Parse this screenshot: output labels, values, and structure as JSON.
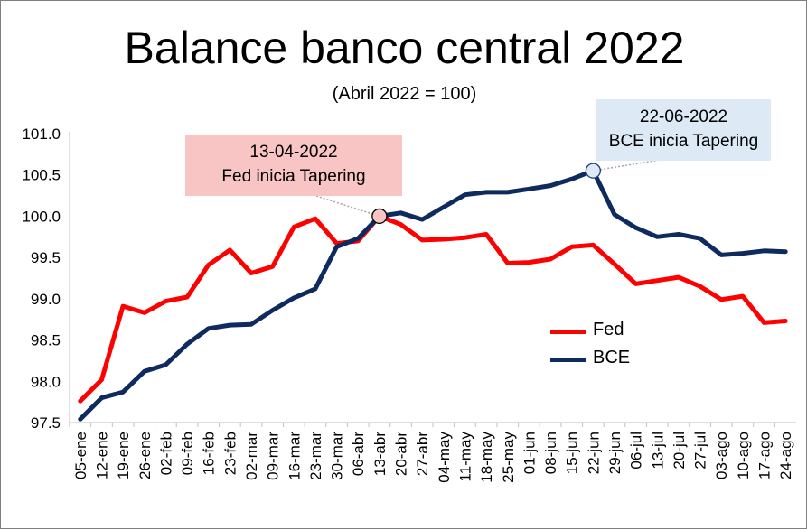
{
  "chart_data": {
    "type": "line",
    "title": "Balance banco central 2022",
    "subtitle": "(Abril 2022 = 100)",
    "x": [
      "05-ene",
      "12-ene",
      "19-ene",
      "26-ene",
      "02-feb",
      "09-feb",
      "16-feb",
      "23-feb",
      "02-mar",
      "09-mar",
      "16-mar",
      "23-mar",
      "30-mar",
      "06-abr",
      "13-abr",
      "20-abr",
      "27-abr",
      "04-may",
      "11-may",
      "18-may",
      "25-may",
      "01-jun",
      "08-jun",
      "15-jun",
      "22-jun",
      "29-jun",
      "06-jul",
      "13-jul",
      "20-jul",
      "27-jul",
      "03-ago",
      "10-ago",
      "17-ago",
      "24-ago"
    ],
    "yticks": [
      "97.5",
      "98.0",
      "98.5",
      "99.0",
      "99.5",
      "100.0",
      "100.5",
      "101.0"
    ],
    "ylim": [
      97.5,
      101.0
    ],
    "grid": false,
    "legend_position": "bottom-right",
    "series": [
      {
        "name": "Fed",
        "color": "#ff0000",
        "values": [
          97.76,
          98.02,
          98.91,
          98.83,
          98.97,
          99.02,
          99.41,
          99.59,
          99.31,
          99.39,
          99.87,
          99.97,
          99.67,
          99.7,
          100.0,
          99.9,
          99.71,
          99.72,
          99.74,
          99.78,
          99.43,
          99.44,
          99.48,
          99.63,
          99.65,
          99.42,
          99.18,
          99.22,
          99.26,
          99.15,
          98.99,
          99.03,
          98.71,
          98.73
        ]
      },
      {
        "name": "BCE",
        "color": "#0e2a5e",
        "values": [
          97.54,
          97.8,
          97.87,
          98.12,
          98.2,
          98.45,
          98.64,
          98.68,
          98.69,
          98.86,
          99.01,
          99.12,
          99.63,
          99.73,
          100.0,
          100.04,
          99.96,
          100.11,
          100.26,
          100.29,
          100.29,
          100.33,
          100.37,
          100.45,
          100.55,
          100.02,
          99.86,
          99.75,
          99.78,
          99.73,
          99.53,
          99.55,
          99.58,
          99.57
        ]
      }
    ],
    "annotations": [
      {
        "date": "13-04-2022",
        "text": "Fed inicia Tapering",
        "x": "13-abr",
        "series": "Fed"
      },
      {
        "date": "22-06-2022",
        "text": "BCE inicia Tapering",
        "x": "22-jun",
        "series": "BCE"
      }
    ]
  }
}
